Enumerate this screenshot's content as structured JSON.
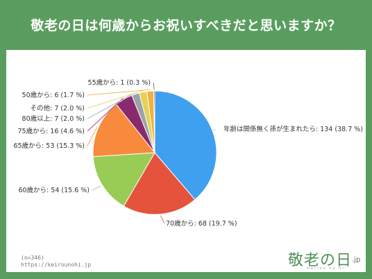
{
  "title": "敬老の日は何歳からお祝いすべきだと思いますか？",
  "note_n": "(n=346)",
  "note_url": "https://keirounohi.jp",
  "logo": {
    "main": "敬老の日",
    "suffix": ".jp",
    "sub": "Keirou no hi"
  },
  "colors": {
    "header_bg": "#5a9e5f",
    "panel_bg": "#ffffff"
  },
  "chart_data": {
    "type": "pie",
    "title": "",
    "slices": [
      {
        "label": "年齢は関係無く孫が生まれたら",
        "value": 134,
        "percent": "38.7 %",
        "color": "#3fa0f0"
      },
      {
        "label": "70歳から",
        "value": 68,
        "percent": "19.7 %",
        "color": "#e5533d"
      },
      {
        "label": "60歳から",
        "value": 54,
        "percent": "15.6 %",
        "color": "#99cc55"
      },
      {
        "label": "65歳から",
        "value": 53,
        "percent": "15.3 %",
        "color": "#f78a3c"
      },
      {
        "label": "75歳から",
        "value": 16,
        "percent": "4.6 %",
        "color": "#8a2a6e"
      },
      {
        "label": "80歳以上",
        "value": 7,
        "percent": "2.0 %",
        "color": "#9aa3a8"
      },
      {
        "label": "その他",
        "value": 7,
        "percent": "2.0 %",
        "color": "#e5d05a"
      },
      {
        "label": "50歳から",
        "value": 6,
        "percent": "1.7 %",
        "color": "#f2b03a"
      },
      {
        "label": "55歳から",
        "value": 1,
        "percent": "0.3 %",
        "color": "#7a4a2a"
      }
    ]
  }
}
